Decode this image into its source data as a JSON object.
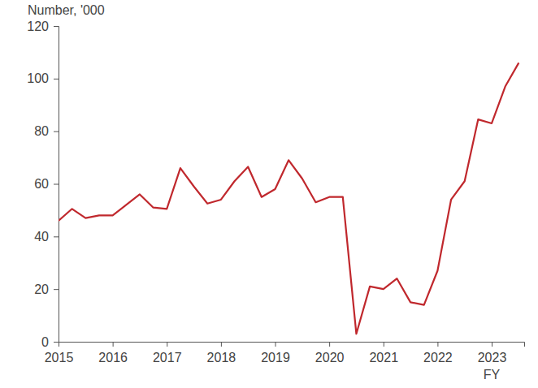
{
  "chart_data": {
    "type": "line",
    "ylabel": "Number, '000",
    "xlabel": "FY",
    "x": [
      2015,
      2015.25,
      2015.5,
      2015.75,
      2016,
      2016.25,
      2016.5,
      2016.75,
      2017,
      2017.25,
      2017.5,
      2017.75,
      2018,
      2018.25,
      2018.5,
      2018.75,
      2019,
      2019.25,
      2019.5,
      2019.75,
      2020,
      2020.25,
      2020.5,
      2020.75,
      2021,
      2021.25,
      2021.5,
      2021.75,
      2022,
      2022.25,
      2022.5,
      2022.75,
      2023,
      2023.25,
      2023.5
    ],
    "values": [
      46,
      50.5,
      47,
      48,
      48,
      52,
      56,
      51,
      50.5,
      66,
      59,
      52.5,
      54,
      61,
      66.5,
      55,
      58,
      69,
      62,
      53,
      55,
      55,
      3,
      21,
      20,
      24,
      15,
      14,
      27,
      54,
      61,
      84.5,
      83,
      97,
      106
    ],
    "color": "#c0282d",
    "xlim": [
      2015,
      2023.6
    ],
    "xticks": [
      2015,
      2016,
      2017,
      2018,
      2019,
      2020,
      2021,
      2022,
      2023
    ],
    "ylim": [
      0,
      120
    ],
    "yticks": [
      0,
      20,
      40,
      60,
      80,
      100,
      120
    ],
    "grid": false
  }
}
